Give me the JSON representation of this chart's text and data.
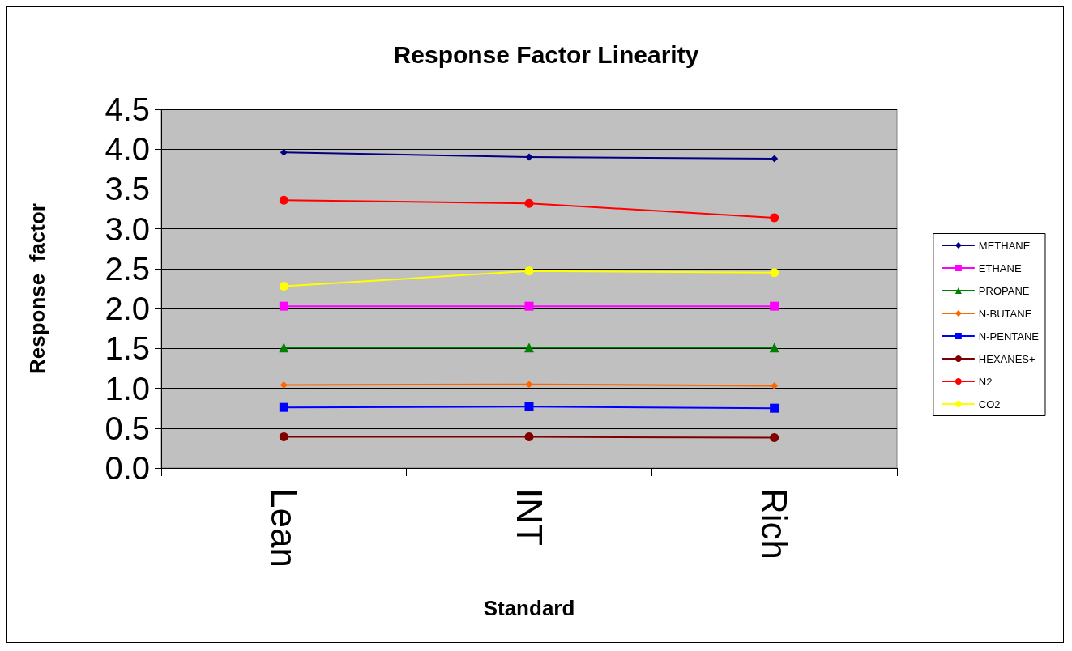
{
  "chart_data": {
    "type": "line",
    "title": "Response Factor Linearity",
    "xlabel": "Standard",
    "ylabel": "Response  factor",
    "categories": [
      "Lean",
      "INT",
      "Rich"
    ],
    "series": [
      {
        "name": "METHANE",
        "color": "#000080",
        "marker": "diamond",
        "values": [
          3.96,
          3.9,
          3.88
        ]
      },
      {
        "name": "ETHANE",
        "color": "#ff00ff",
        "marker": "square",
        "values": [
          2.03,
          2.03,
          2.03
        ]
      },
      {
        "name": "PROPANE",
        "color": "#008000",
        "marker": "triangle",
        "values": [
          1.51,
          1.51,
          1.51
        ]
      },
      {
        "name": "N-BUTANE",
        "color": "#ff6600",
        "marker": "diamond",
        "values": [
          1.04,
          1.05,
          1.03
        ]
      },
      {
        "name": "N-PENTANE",
        "color": "#0000ff",
        "marker": "square",
        "values": [
          0.76,
          0.77,
          0.75
        ]
      },
      {
        "name": "HEXANES+",
        "color": "#800000",
        "marker": "circle",
        "values": [
          0.39,
          0.39,
          0.38
        ]
      },
      {
        "name": "N2",
        "color": "#ff0000",
        "marker": "circle",
        "values": [
          3.36,
          3.32,
          3.14
        ]
      },
      {
        "name": "CO2",
        "color": "#ffff00",
        "marker": "circle",
        "values": [
          2.28,
          2.47,
          2.45
        ]
      }
    ],
    "ylim": [
      0,
      4.5
    ],
    "yticks": [
      {
        "value": 0,
        "label": "0.0"
      },
      0.5,
      {
        "value": 1,
        "label": "1.0"
      },
      1.5,
      {
        "value": 2,
        "label": "2.0"
      },
      2.5,
      {
        "value": 3,
        "label": "3.0"
      },
      3.5,
      {
        "value": 4,
        "label": "4.0"
      },
      4.5
    ],
    "grid": "y",
    "legend": "right"
  }
}
